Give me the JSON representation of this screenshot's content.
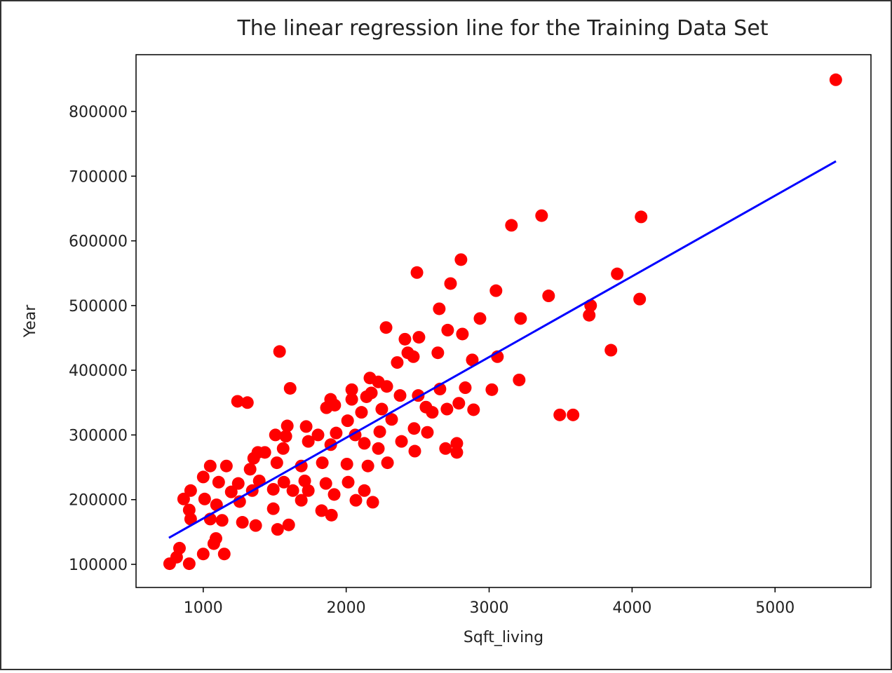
{
  "chart_data": {
    "type": "scatter",
    "title": "The linear regression line for the Training Data Set",
    "x_label": "Sqft_living",
    "y_label": "Year",
    "xlim": [
      530,
      5671
    ],
    "ylim": [
      64250,
      887760
    ],
    "xticks": [
      1000,
      2000,
      3000,
      4000,
      5000
    ],
    "yticks": [
      100000,
      200000,
      300000,
      400000,
      500000,
      600000,
      700000,
      800000
    ],
    "grid": false,
    "points": {
      "color": "#ff0000",
      "x": [
        5425,
        3367,
        3156,
        4063,
        2495,
        2803,
        2730,
        3896,
        3048,
        3416,
        2651,
        3710,
        3700,
        4053,
        2279,
        2936,
        3220,
        2710,
        2813,
        2411,
        2509,
        1534,
        2641,
        3852,
        2431,
        2470,
        2882,
        3058,
        2357,
        3210,
        2166,
        2225,
        2284,
        1608,
        2656,
        2833,
        3019,
        2039,
        2039,
        2377,
        2504,
        1240,
        1309,
        1891,
        1920,
        1862,
        2142,
        2176,
        2249,
        2788,
        2891,
        2705,
        2558,
        2602,
        3494,
        3587,
        2107,
        2318,
        2010,
        1588,
        1720,
        2475,
        2568,
        1505,
        1578,
        1803,
        1930,
        2063,
        2235,
        2387,
        2695,
        2774,
        2774,
        2480,
        1382,
        1431,
        1353,
        1559,
        1735,
        1892,
        2127,
        2225,
        1049,
        1162,
        1328,
        1515,
        1686,
        1833,
        2005,
        2152,
        2289,
        1000,
        1108,
        1245,
        1392,
        1564,
        1710,
        1858,
        2014,
        1196,
        1343,
        1490,
        1627,
        1735,
        1916,
        2127,
        912,
        863,
        1010,
        1093,
        1255,
        2068,
        2186,
        1686,
        902,
        1490,
        1828,
        912,
        1049,
        1132,
        1274,
        1897,
        1367,
        1598,
        1520,
        1089,
        1074,
        1147,
        1000,
        834,
        814,
        765,
        902
      ],
      "y": [
        849000,
        639000,
        624000,
        637000,
        551000,
        571000,
        534000,
        549000,
        523000,
        515000,
        495000,
        500000,
        485000,
        510000,
        466000,
        480000,
        480000,
        462000,
        456000,
        448000,
        451000,
        429000,
        427000,
        431000,
        427000,
        421000,
        416000,
        421000,
        412000,
        385000,
        388000,
        382000,
        375000,
        372000,
        371000,
        373000,
        370000,
        370000,
        355000,
        361000,
        361000,
        352000,
        350000,
        355000,
        346000,
        342000,
        359000,
        365000,
        340000,
        349000,
        339000,
        340000,
        343000,
        335000,
        331000,
        331000,
        335000,
        324000,
        322000,
        314000,
        313000,
        310000,
        304000,
        300000,
        298000,
        300000,
        303000,
        300000,
        305000,
        290000,
        279000,
        287000,
        273000,
        275000,
        273000,
        273000,
        264000,
        279000,
        290000,
        285000,
        287000,
        279000,
        252000,
        252000,
        247000,
        257000,
        252000,
        257000,
        255000,
        252000,
        257000,
        235000,
        227000,
        225000,
        229000,
        227000,
        229000,
        225000,
        227000,
        212000,
        214000,
        216000,
        214000,
        214000,
        208000,
        214000,
        214000,
        201000,
        201000,
        192000,
        197000,
        199000,
        196000,
        199000,
        184000,
        186000,
        183000,
        170000,
        170000,
        168000,
        165000,
        176000,
        160000,
        161000,
        154000,
        140000,
        132000,
        116000,
        116000,
        125000,
        111000,
        101000,
        101000
      ]
    },
    "regression_line": {
      "color": "#0000ff",
      "x": [
        760,
        5426
      ],
      "y": [
        141000,
        723000
      ]
    }
  }
}
